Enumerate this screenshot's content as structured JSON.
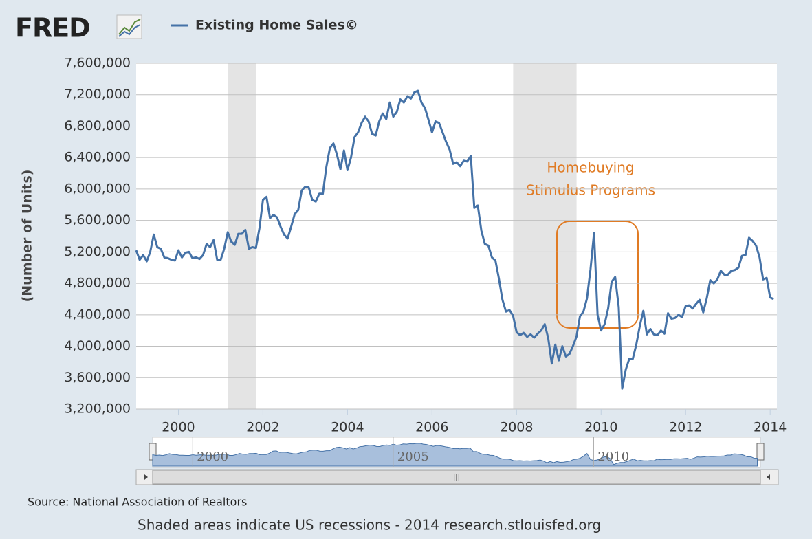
{
  "logo": "FRED",
  "source": "Source: National Association of Realtors",
  "footer": "Shaded areas indicate US recessions - 2014 research.stlouisfed.org",
  "chart_data": {
    "type": "line",
    "ylabel": "(Number of Units)",
    "annotation": [
      "Homebuying",
      "Stimulus Programs"
    ],
    "recessions": [
      [
        2001.17,
        2001.83
      ],
      [
        2007.92,
        2009.42
      ]
    ],
    "xlim": [
      1999,
      2014.16
    ],
    "xticks": [
      2000,
      2002,
      2004,
      2006,
      2008,
      2010,
      2012,
      2014
    ],
    "navigator_ticks": [
      2000,
      2005,
      2010
    ],
    "ylim": [
      3200000,
      7600000
    ],
    "yticks": [
      {
        "value": 3200000,
        "label": "3,200,000"
      },
      {
        "value": 3600000,
        "label": "3,600,000"
      },
      {
        "value": 4000000,
        "label": "4,000,000"
      },
      {
        "value": 4400000,
        "label": "4,400,000"
      },
      {
        "value": 4800000,
        "label": "4,800,000"
      },
      {
        "value": 5200000,
        "label": "5,200,000"
      },
      {
        "value": 5600000,
        "label": "5,600,000"
      },
      {
        "value": 6000000,
        "label": "6,000,000"
      },
      {
        "value": 6400000,
        "label": "6,400,000"
      },
      {
        "value": 6800000,
        "label": "6,800,000"
      },
      {
        "value": 7200000,
        "label": "7,200,000"
      },
      {
        "value": 7600000,
        "label": "7,600,000"
      }
    ],
    "grid": true,
    "x": [
      1999,
      1999.083,
      1999.167,
      1999.25,
      1999.333,
      1999.417,
      1999.5,
      1999.583,
      1999.667,
      1999.75,
      1999.833,
      1999.917,
      2000,
      2000.083,
      2000.167,
      2000.25,
      2000.333,
      2000.417,
      2000.5,
      2000.583,
      2000.667,
      2000.75,
      2000.833,
      2000.917,
      2001,
      2001.083,
      2001.167,
      2001.25,
      2001.333,
      2001.417,
      2001.5,
      2001.583,
      2001.667,
      2001.75,
      2001.833,
      2001.917,
      2002,
      2002.083,
      2002.167,
      2002.25,
      2002.333,
      2002.417,
      2002.5,
      2002.583,
      2002.667,
      2002.75,
      2002.833,
      2002.917,
      2003,
      2003.083,
      2003.167,
      2003.25,
      2003.333,
      2003.417,
      2003.5,
      2003.583,
      2003.667,
      2003.75,
      2003.833,
      2003.917,
      2004,
      2004.083,
      2004.167,
      2004.25,
      2004.333,
      2004.417,
      2004.5,
      2004.583,
      2004.667,
      2004.75,
      2004.833,
      2004.917,
      2005,
      2005.083,
      2005.167,
      2005.25,
      2005.333,
      2005.417,
      2005.5,
      2005.583,
      2005.667,
      2005.75,
      2005.833,
      2005.917,
      2006,
      2006.083,
      2006.167,
      2006.25,
      2006.333,
      2006.417,
      2006.5,
      2006.583,
      2006.667,
      2006.75,
      2006.833,
      2006.917,
      2007,
      2007.083,
      2007.167,
      2007.25,
      2007.333,
      2007.417,
      2007.5,
      2007.583,
      2007.667,
      2007.75,
      2007.833,
      2007.917,
      2008,
      2008.083,
      2008.167,
      2008.25,
      2008.333,
      2008.417,
      2008.5,
      2008.583,
      2008.667,
      2008.75,
      2008.833,
      2008.917,
      2009,
      2009.083,
      2009.167,
      2009.25,
      2009.333,
      2009.417,
      2009.5,
      2009.583,
      2009.667,
      2009.75,
      2009.833,
      2009.917,
      2010,
      2010.083,
      2010.167,
      2010.25,
      2010.333,
      2010.417,
      2010.5,
      2010.583,
      2010.667,
      2010.75,
      2010.833,
      2010.917,
      2011,
      2011.083,
      2011.167,
      2011.25,
      2011.333,
      2011.417,
      2011.5,
      2011.583,
      2011.667,
      2011.75,
      2011.833,
      2011.917,
      2012,
      2012.083,
      2012.167,
      2012.25,
      2012.333,
      2012.417,
      2012.5,
      2012.583,
      2012.667,
      2012.75,
      2012.833,
      2012.917,
      2013,
      2013.083,
      2013.167,
      2013.25,
      2013.333,
      2013.417,
      2013.5,
      2013.583,
      2013.667,
      2013.75,
      2013.833,
      2013.917,
      2014,
      2014.083
    ],
    "series": [
      {
        "name": "Existing Home Sales©",
        "color": "#4572a7",
        "values": [
          5220000,
          5100000,
          5160000,
          5080000,
          5200000,
          5420000,
          5260000,
          5240000,
          5130000,
          5120000,
          5100000,
          5090000,
          5220000,
          5130000,
          5190000,
          5200000,
          5120000,
          5130000,
          5110000,
          5160000,
          5300000,
          5260000,
          5350000,
          5100000,
          5100000,
          5240000,
          5450000,
          5330000,
          5290000,
          5430000,
          5430000,
          5480000,
          5240000,
          5260000,
          5250000,
          5500000,
          5860000,
          5900000,
          5630000,
          5670000,
          5640000,
          5520000,
          5420000,
          5370000,
          5520000,
          5680000,
          5730000,
          5980000,
          6030000,
          6020000,
          5860000,
          5840000,
          5940000,
          5940000,
          6280000,
          6520000,
          6580000,
          6440000,
          6250000,
          6490000,
          6240000,
          6400000,
          6660000,
          6720000,
          6840000,
          6920000,
          6860000,
          6700000,
          6680000,
          6860000,
          6960000,
          6890000,
          7100000,
          6920000,
          6980000,
          7140000,
          7100000,
          7180000,
          7150000,
          7230000,
          7250000,
          7100000,
          7030000,
          6880000,
          6720000,
          6860000,
          6840000,
          6720000,
          6600000,
          6500000,
          6320000,
          6340000,
          6290000,
          6360000,
          6350000,
          6420000,
          5760000,
          5790000,
          5470000,
          5300000,
          5280000,
          5130000,
          5090000,
          4860000,
          4590000,
          4440000,
          4460000,
          4390000,
          4180000,
          4140000,
          4170000,
          4120000,
          4150000,
          4110000,
          4160000,
          4200000,
          4280000,
          4100000,
          3780000,
          4020000,
          3820000,
          4000000,
          3870000,
          3900000,
          4000000,
          4120000,
          4380000,
          4440000,
          4610000,
          4980000,
          5440000,
          4400000,
          4200000,
          4280000,
          4480000,
          4820000,
          4880000,
          4500000,
          3460000,
          3700000,
          3840000,
          3840000,
          4020000,
          4260000,
          4450000,
          4150000,
          4220000,
          4150000,
          4140000,
          4200000,
          4160000,
          4420000,
          4350000,
          4360000,
          4400000,
          4370000,
          4510000,
          4520000,
          4480000,
          4540000,
          4590000,
          4430000,
          4610000,
          4840000,
          4800000,
          4850000,
          4960000,
          4910000,
          4910000,
          4960000,
          4970000,
          5000000,
          5150000,
          5160000,
          5380000,
          5340000,
          5280000,
          5130000,
          4850000,
          4870000,
          4620000,
          4600000
        ]
      }
    ]
  }
}
